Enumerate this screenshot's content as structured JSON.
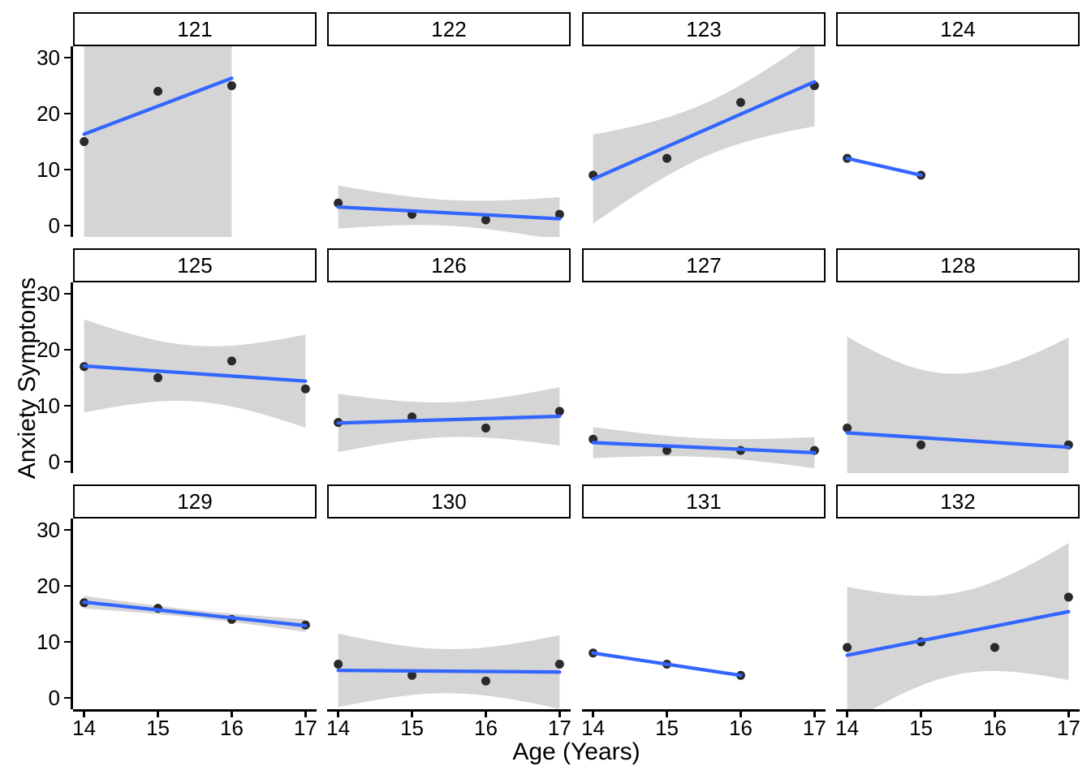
{
  "chart_data": {
    "type": "scatter",
    "title": "",
    "xlabel": "Age (Years)",
    "ylabel": "Anxiety Symptoms",
    "x_ticks": [
      14,
      15,
      16,
      17
    ],
    "y_ticks": [
      0,
      10,
      20,
      30
    ],
    "xlim": [
      13.85,
      17.15
    ],
    "ylim": [
      -2.05,
      32.05
    ],
    "grid": false,
    "legend": "none",
    "facet_layout": {
      "rows": 3,
      "cols": 4
    },
    "smooth": {
      "method": "lm",
      "se": true,
      "level": 0.95
    },
    "style": {
      "line_color": "#3366FF",
      "band_color": "#D5D5D5",
      "point_color": "#2A2A2A",
      "axis_color": "#000000",
      "strip_background": "#FFFFFF",
      "strip_border": "#000000"
    },
    "facets": [
      {
        "label": "121",
        "x": [
          14,
          15,
          16
        ],
        "y": [
          15,
          24,
          25
        ]
      },
      {
        "label": "122",
        "x": [
          14,
          15,
          16,
          17
        ],
        "y": [
          4,
          2,
          1,
          2
        ]
      },
      {
        "label": "123",
        "x": [
          14,
          15,
          16,
          17
        ],
        "y": [
          9,
          12,
          22,
          25
        ]
      },
      {
        "label": "124",
        "x": [
          14,
          15
        ],
        "y": [
          12,
          9
        ]
      },
      {
        "label": "125",
        "x": [
          14,
          15,
          16,
          17
        ],
        "y": [
          17,
          15,
          18,
          13
        ]
      },
      {
        "label": "126",
        "x": [
          14,
          15,
          16,
          17
        ],
        "y": [
          7,
          8,
          6,
          9
        ]
      },
      {
        "label": "127",
        "x": [
          14,
          15,
          16,
          17
        ],
        "y": [
          4,
          2,
          2,
          2
        ]
      },
      {
        "label": "128",
        "x": [
          14,
          15,
          17
        ],
        "y": [
          6,
          3,
          3
        ]
      },
      {
        "label": "129",
        "x": [
          14,
          15,
          16,
          17
        ],
        "y": [
          17,
          16,
          14,
          13
        ]
      },
      {
        "label": "130",
        "x": [
          14,
          15,
          16,
          17
        ],
        "y": [
          6,
          4,
          3,
          6
        ]
      },
      {
        "label": "131",
        "x": [
          14,
          15,
          16
        ],
        "y": [
          8,
          6,
          4
        ]
      },
      {
        "label": "132",
        "x": [
          14,
          15,
          16,
          17
        ],
        "y": [
          9,
          10,
          9,
          18
        ]
      }
    ]
  }
}
